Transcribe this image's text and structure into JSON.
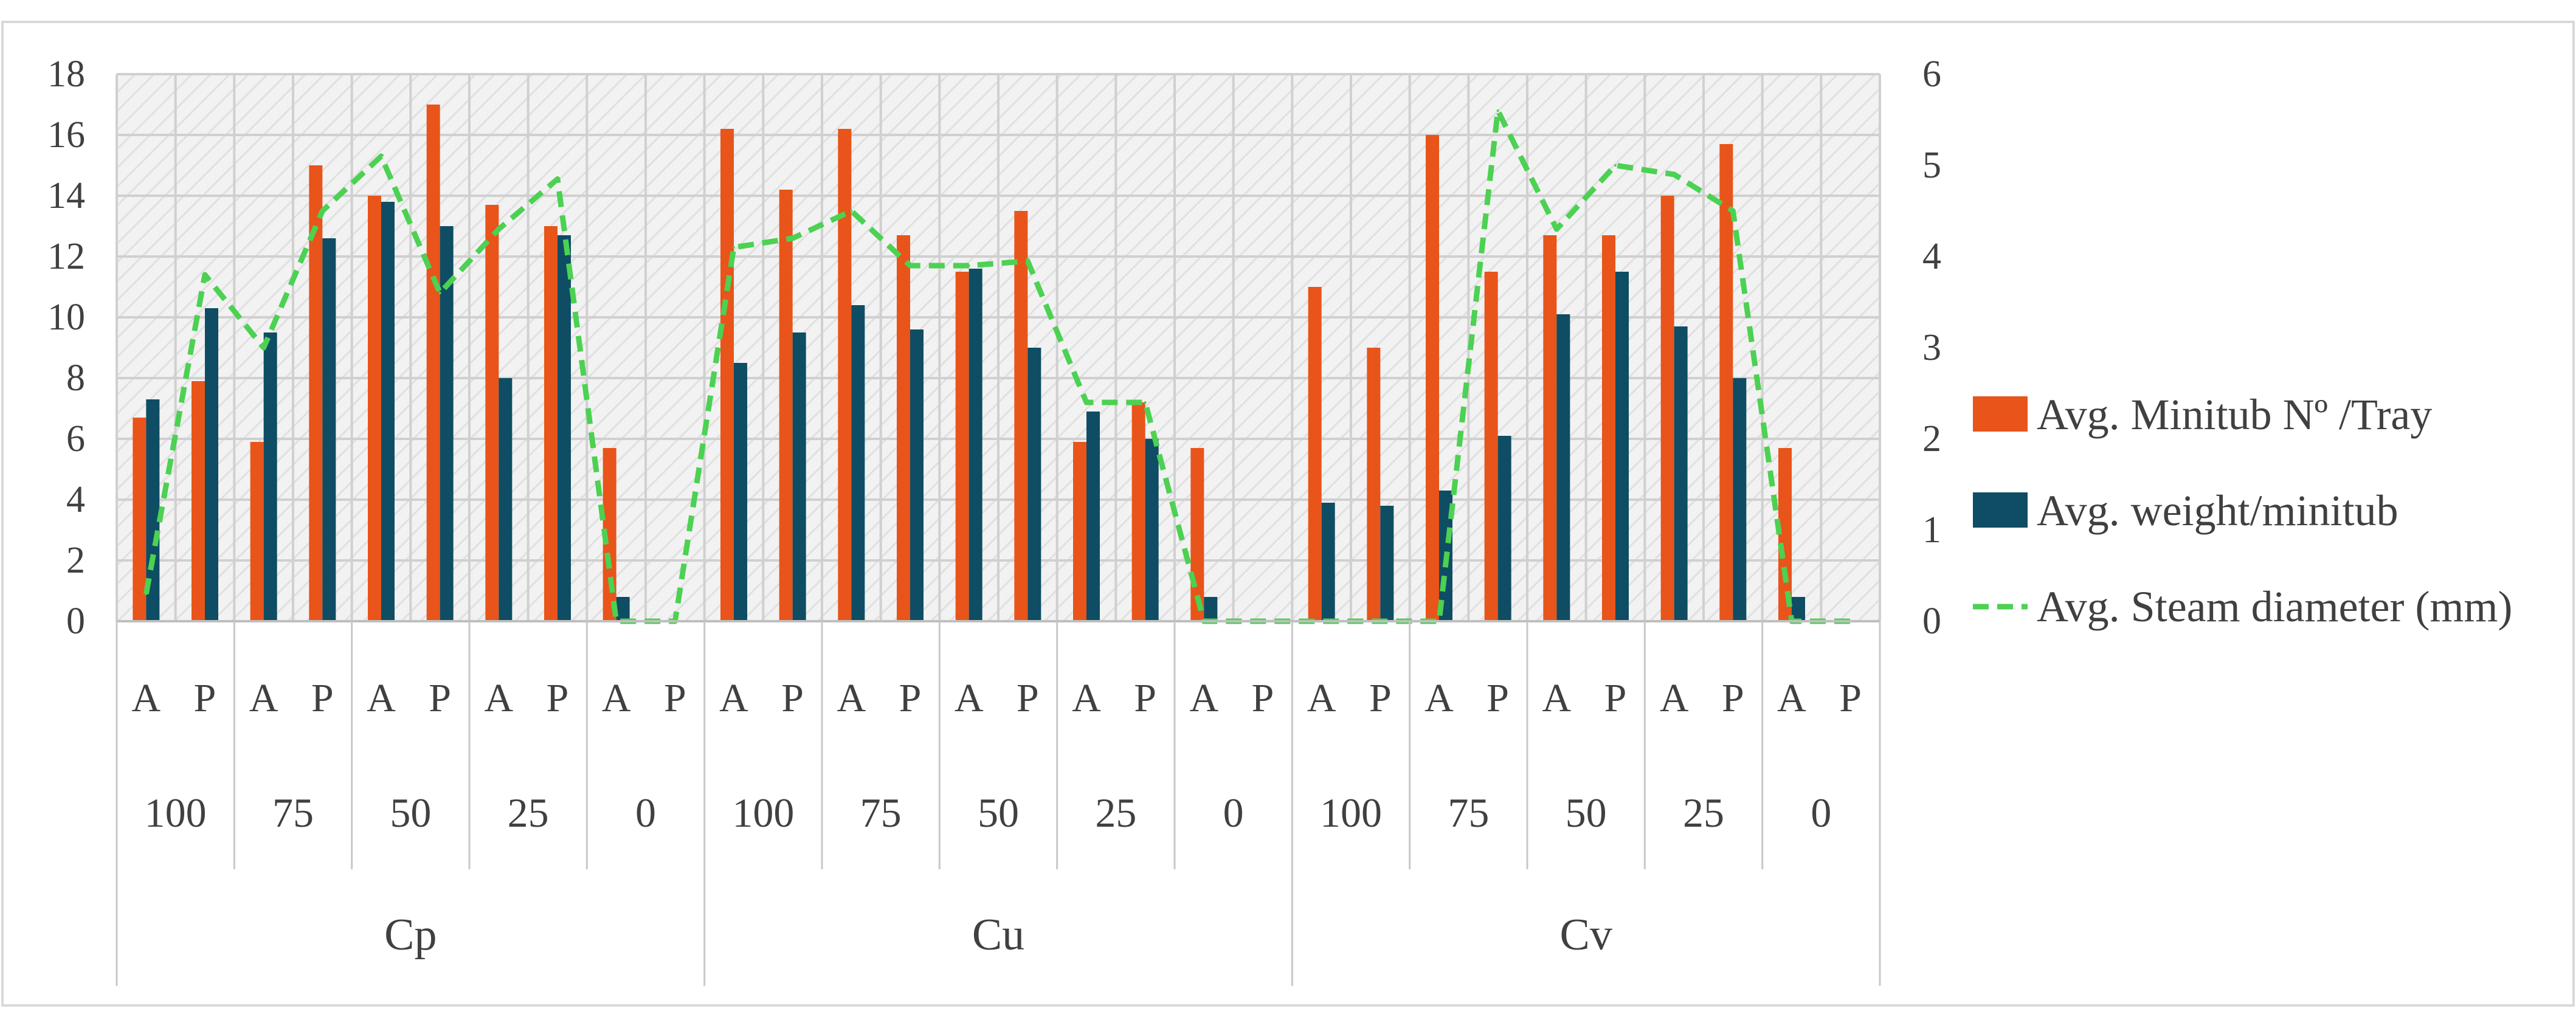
{
  "colors": {
    "minitub": "#E8541A",
    "weight": "#0E4D64",
    "steam": "#4CD152",
    "grid": "#D0D0D0",
    "plot_bg": "#EFEFEF",
    "text": "#404040"
  },
  "chart_data": {
    "type": "bar",
    "groups": [
      {
        "label": "Cp",
        "levels": [
          "100",
          "75",
          "50",
          "25",
          "0"
        ]
      },
      {
        "label": "Cu",
        "levels": [
          "100",
          "75",
          "50",
          "25",
          "0"
        ]
      },
      {
        "label": "Cv",
        "levels": [
          "100",
          "75",
          "50",
          "25",
          "0"
        ]
      }
    ],
    "subcategories": [
      "A",
      "P"
    ],
    "categories": [
      "Cp-100-A",
      "Cp-100-P",
      "Cp-75-A",
      "Cp-75-P",
      "Cp-50-A",
      "Cp-50-P",
      "Cp-25-A",
      "Cp-25-P",
      "Cp-0-A",
      "Cp-0-P",
      "Cu-100-A",
      "Cu-100-P",
      "Cu-75-A",
      "Cu-75-P",
      "Cu-50-A",
      "Cu-50-P",
      "Cu-25-A",
      "Cu-25-P",
      "Cu-0-A",
      "Cu-0-P",
      "Cv-100-A",
      "Cv-100-P",
      "Cv-75-A",
      "Cv-75-P",
      "Cv-50-A",
      "Cv-50-P",
      "Cv-25-A",
      "Cv-25-P",
      "Cv-0-A",
      "Cv-0-P"
    ],
    "series": [
      {
        "name": "Avg. Minitub Nº /Tray",
        "type": "bar",
        "axis": "left",
        "values": [
          6.7,
          7.9,
          5.9,
          15.0,
          14.0,
          17.0,
          13.7,
          13.0,
          5.7,
          0,
          16.2,
          14.2,
          16.2,
          12.7,
          11.5,
          13.5,
          5.9,
          7.2,
          5.7,
          0,
          11.0,
          9.0,
          16.0,
          11.5,
          12.7,
          12.7,
          14.0,
          15.7,
          5.7,
          0
        ]
      },
      {
        "name": "Avg. weight/minitub",
        "type": "bar",
        "axis": "left",
        "values": [
          7.3,
          10.3,
          9.5,
          12.6,
          13.8,
          13.0,
          8.0,
          12.7,
          0.8,
          0,
          8.5,
          9.5,
          10.4,
          9.6,
          11.6,
          9.0,
          6.9,
          6.0,
          0.8,
          0,
          3.9,
          3.8,
          4.3,
          6.1,
          10.1,
          11.5,
          9.7,
          8.0,
          0.8,
          0
        ]
      },
      {
        "name": "Avg. Steam diameter (mm)",
        "type": "line",
        "axis": "right",
        "values": [
          0.3,
          3.8,
          3.0,
          4.5,
          5.1,
          3.6,
          4.3,
          4.85,
          0,
          0,
          4.1,
          4.2,
          4.5,
          3.9,
          3.9,
          3.95,
          2.4,
          2.4,
          0,
          0,
          0,
          0,
          0,
          5.6,
          4.3,
          5.0,
          4.9,
          4.5,
          0,
          0
        ]
      }
    ],
    "ylim": [
      0,
      18
    ],
    "y2lim": [
      0,
      6
    ],
    "yticks": [
      "0",
      "2",
      "4",
      "6",
      "8",
      "10",
      "12",
      "14",
      "16",
      "18"
    ],
    "y2ticks": [
      "0",
      "1",
      "2",
      "3",
      "4",
      "5",
      "6"
    ],
    "grid": true,
    "legend_position": "right"
  }
}
